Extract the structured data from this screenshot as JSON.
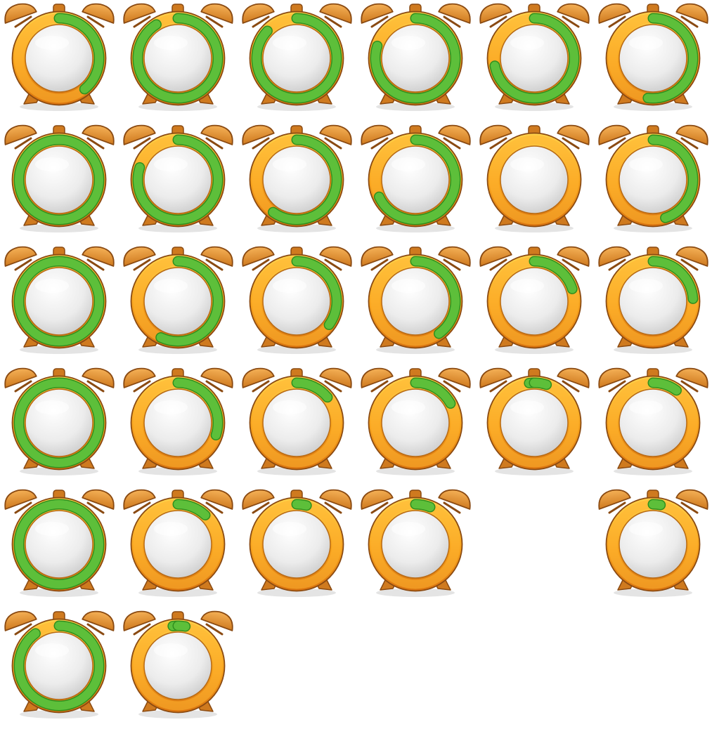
{
  "colors": {
    "body_light": "#ffd24a",
    "body_mid": "#f7a21c",
    "body_dark": "#d9730f",
    "outline": "#8a4a12",
    "bell_light": "#f4b056",
    "bell_dark": "#cf7a1f",
    "face_light": "#ffffff",
    "face_dark": "#c9c9c9",
    "progress_fill": "#5dbf3a",
    "progress_edge": "#2f8e1e",
    "shadow": "#d8d8d8"
  },
  "icons": [
    {
      "name": "alarm-clock-icon",
      "row": 0,
      "col": 0,
      "arcs": [
        [
          0.0,
          0.39
        ]
      ]
    },
    {
      "name": "alarm-clock-icon",
      "row": 0,
      "col": 1,
      "arcs": [
        [
          0.0,
          0.91
        ]
      ]
    },
    {
      "name": "alarm-clock-icon",
      "row": 0,
      "col": 2,
      "arcs": [
        [
          0.0,
          0.87
        ]
      ]
    },
    {
      "name": "alarm-clock-icon",
      "row": 0,
      "col": 3,
      "arcs": [
        [
          0.0,
          0.8
        ]
      ]
    },
    {
      "name": "alarm-clock-icon",
      "row": 0,
      "col": 4,
      "arcs": [
        [
          0.0,
          0.72
        ]
      ]
    },
    {
      "name": "alarm-clock-icon",
      "row": 0,
      "col": 5,
      "arcs": [
        [
          0.0,
          0.52
        ]
      ]
    },
    {
      "name": "alarm-clock-icon",
      "row": 1,
      "col": 0,
      "arcs": [
        [
          0.0,
          1.0
        ]
      ]
    },
    {
      "name": "alarm-clock-icon",
      "row": 1,
      "col": 1,
      "arcs": [
        [
          0.0,
          0.8
        ]
      ]
    },
    {
      "name": "alarm-clock-icon",
      "row": 1,
      "col": 2,
      "arcs": [
        [
          0.0,
          0.6
        ]
      ]
    },
    {
      "name": "alarm-clock-icon",
      "row": 1,
      "col": 3,
      "arcs": [
        [
          0.0,
          0.68
        ]
      ]
    },
    {
      "name": "alarm-clock-icon",
      "row": 1,
      "col": 4,
      "arcs": []
    },
    {
      "name": "alarm-clock-icon",
      "row": 1,
      "col": 5,
      "arcs": [
        [
          0.0,
          0.45
        ]
      ]
    },
    {
      "name": "alarm-clock-icon",
      "row": 2,
      "col": 0,
      "arcs": [
        [
          0.0,
          1.0
        ]
      ]
    },
    {
      "name": "alarm-clock-icon",
      "row": 2,
      "col": 1,
      "arcs": [
        [
          0.0,
          0.57
        ]
      ]
    },
    {
      "name": "alarm-clock-icon",
      "row": 2,
      "col": 2,
      "arcs": [
        [
          0.0,
          0.35
        ]
      ]
    },
    {
      "name": "alarm-clock-icon",
      "row": 2,
      "col": 3,
      "arcs": [
        [
          0.0,
          0.4
        ]
      ]
    },
    {
      "name": "alarm-clock-icon",
      "row": 2,
      "col": 4,
      "arcs": [
        [
          0.0,
          0.2
        ]
      ]
    },
    {
      "name": "alarm-clock-icon",
      "row": 2,
      "col": 5,
      "arcs": [
        [
          0.0,
          0.24
        ]
      ]
    },
    {
      "name": "alarm-clock-icon",
      "row": 3,
      "col": 0,
      "arcs": [
        [
          0.0,
          1.0
        ]
      ]
    },
    {
      "name": "alarm-clock-icon",
      "row": 3,
      "col": 1,
      "arcs": [
        [
          0.0,
          0.3
        ]
      ]
    },
    {
      "name": "alarm-clock-icon",
      "row": 3,
      "col": 2,
      "arcs": [
        [
          0.0,
          0.14
        ]
      ]
    },
    {
      "name": "alarm-clock-icon",
      "row": 3,
      "col": 3,
      "arcs": [
        [
          0.0,
          0.17
        ]
      ]
    },
    {
      "name": "alarm-clock-icon",
      "row": 3,
      "col": 4,
      "arcs": [
        [
          0.98,
          1.0
        ],
        [
          0.0,
          0.05
        ]
      ]
    },
    {
      "name": "alarm-clock-icon",
      "row": 3,
      "col": 5,
      "arcs": [
        [
          0.0,
          0.1
        ]
      ]
    },
    {
      "name": "alarm-clock-icon",
      "row": 4,
      "col": 0,
      "arcs": [
        [
          0.0,
          1.0
        ]
      ]
    },
    {
      "name": "alarm-clock-icon",
      "row": 4,
      "col": 1,
      "arcs": [
        [
          0.0,
          0.12
        ]
      ]
    },
    {
      "name": "alarm-clock-icon",
      "row": 4,
      "col": 2,
      "arcs": [
        [
          0.0,
          0.04
        ]
      ]
    },
    {
      "name": "alarm-clock-icon",
      "row": 4,
      "col": 3,
      "arcs": [
        [
          0.0,
          0.06
        ]
      ]
    },
    {
      "name": "alarm-clock-icon",
      "row": 4,
      "col": 5,
      "arcs": [
        [
          0.0,
          0.03
        ]
      ]
    },
    {
      "name": "alarm-clock-icon",
      "row": 5,
      "col": 0,
      "arcs": [
        [
          0.0,
          0.9
        ]
      ]
    },
    {
      "name": "alarm-clock-icon",
      "row": 5,
      "col": 1,
      "arcs": [
        [
          0.98,
          1.0
        ],
        [
          0.0,
          0.03
        ]
      ]
    }
  ]
}
